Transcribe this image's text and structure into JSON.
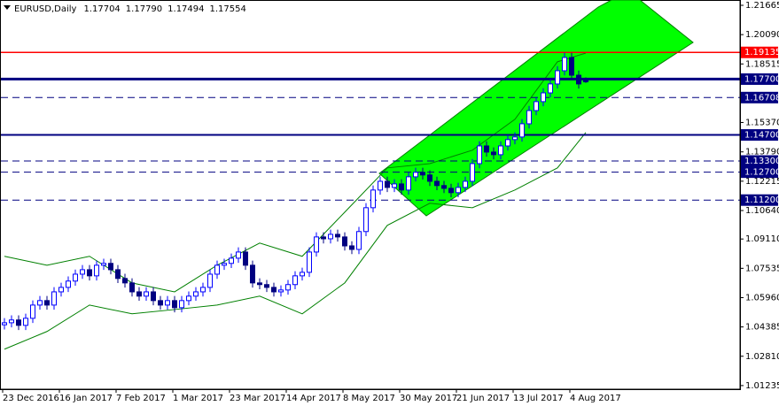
{
  "chart_data": {
    "type": "candlestick",
    "symbol": "EURUSD,Daily",
    "ohlc": [
      1.17704,
      {
        "value": 1.1779,
        "label": "1.17790"
      },
      1.17494,
      1.17554
    ],
    "categories": [
      "23 Dec 2016",
      null,
      null,
      null,
      null,
      null,
      null,
      null,
      "16 Jan 2017",
      null,
      null,
      null,
      null,
      null,
      null,
      null,
      "7 Feb 2017",
      null,
      null,
      null,
      null,
      null,
      null,
      null,
      "1 Mar 2017",
      null,
      null,
      null,
      null,
      null,
      null,
      null,
      "23 Mar 2017",
      null,
      null,
      null,
      null,
      null,
      null,
      null,
      "14 Apr 2017",
      null,
      null,
      null,
      null,
      null,
      null,
      null,
      "8 May 2017",
      null,
      null,
      null,
      null,
      null,
      null,
      null,
      "30 May 2017",
      null,
      null,
      null,
      null,
      null,
      null,
      null,
      "21 Jun 2017",
      null,
      null,
      null,
      null,
      null,
      null,
      null,
      "13 Jul 2017",
      null,
      null,
      null,
      null,
      null,
      null,
      null,
      "4 Aug 2017",
      null,
      null
    ],
    "open": [
      1.045,
      1.0461,
      1.0476,
      1.0447,
      1.0485,
      1.0556,
      1.058,
      1.0556,
      1.0627,
      1.0651,
      1.0685,
      1.0722,
      1.0746,
      1.0713,
      1.077,
      1.078,
      1.0746,
      1.0699,
      1.0675,
      1.0627,
      1.0604,
      1.0627,
      1.058,
      1.0556,
      1.058,
      1.0542,
      1.058,
      1.0604,
      1.0627,
      1.0651,
      1.0722,
      1.077,
      1.078,
      1.0808,
      1.0841,
      1.077,
      1.0675,
      1.0666,
      1.0651,
      1.0627,
      1.0637,
      1.0666,
      1.0713,
      1.0732,
      1.0841,
      1.0922,
      1.0912,
      1.0936,
      1.0922,
      1.0874,
      1.0855,
      1.0951,
      1.1079,
      1.1174,
      1.1221,
      1.1188,
      1.1207,
      1.1174,
      1.1245,
      1.1269,
      1.1255,
      1.1221,
      1.1198,
      1.1183,
      1.116,
      1.1188,
      1.1221,
      1.1316,
      1.1411,
      1.1378,
      1.1364,
      1.1411,
      1.1445,
      1.1459,
      1.153,
      1.1601,
      1.1649,
      1.1696,
      1.1744,
      1.1815,
      1.1886,
      1.1791,
      1.17704
    ],
    "high": [
      1.0486,
      1.0501,
      1.0501,
      1.051,
      1.0581,
      1.0605,
      1.0605,
      1.0652,
      1.0676,
      1.071,
      1.0747,
      1.0771,
      1.0771,
      1.0795,
      1.0805,
      1.0805,
      1.0771,
      1.0724,
      1.07,
      1.0652,
      1.0652,
      1.0652,
      1.0605,
      1.0605,
      1.0605,
      1.0605,
      1.0629,
      1.0652,
      1.0676,
      1.0747,
      1.0795,
      1.0805,
      1.0833,
      1.0866,
      1.0866,
      1.0795,
      1.07,
      1.0691,
      1.0676,
      1.0662,
      1.0691,
      1.0738,
      1.0757,
      1.0866,
      1.0947,
      1.0947,
      1.0961,
      1.0961,
      1.0947,
      1.0899,
      1.0976,
      1.1104,
      1.1199,
      1.1246,
      1.1246,
      1.1232,
      1.1232,
      1.127,
      1.1294,
      1.1294,
      1.128,
      1.1246,
      1.1223,
      1.1208,
      1.1213,
      1.1246,
      1.1341,
      1.1436,
      1.1436,
      1.1403,
      1.1436,
      1.147,
      1.1484,
      1.1555,
      1.1626,
      1.1674,
      1.1721,
      1.1769,
      1.184,
      1.1911,
      1.1911,
      1.1816,
      1.1779
    ],
    "low": [
      1.0425,
      1.0436,
      1.0422,
      1.0422,
      1.046,
      1.0531,
      1.0531,
      1.0531,
      1.0602,
      1.0626,
      1.066,
      1.0697,
      1.0688,
      1.0688,
      1.0745,
      1.0721,
      1.0674,
      1.065,
      1.0602,
      1.0579,
      1.0579,
      1.0555,
      1.0531,
      1.0531,
      1.0517,
      1.0517,
      1.0555,
      1.0579,
      1.0602,
      1.0626,
      1.0697,
      1.0745,
      1.0755,
      1.0783,
      1.0745,
      1.065,
      1.0641,
      1.0626,
      1.0602,
      1.0602,
      1.0612,
      1.0641,
      1.0688,
      1.0707,
      1.0816,
      1.0887,
      1.0887,
      1.0897,
      1.0849,
      1.083,
      1.083,
      1.0926,
      1.1054,
      1.1149,
      1.1163,
      1.1163,
      1.1149,
      1.1149,
      1.122,
      1.123,
      1.1196,
      1.1173,
      1.1158,
      1.1135,
      1.1135,
      1.1163,
      1.1196,
      1.1291,
      1.1353,
      1.1339,
      1.1339,
      1.1386,
      1.142,
      1.1434,
      1.1505,
      1.1576,
      1.1624,
      1.1671,
      1.1719,
      1.179,
      1.1766,
      1.1719,
      1.17494
    ],
    "close": [
      1.0461,
      1.0476,
      1.0447,
      1.0485,
      1.0556,
      1.058,
      1.0556,
      1.0627,
      1.0651,
      1.0685,
      1.0722,
      1.0746,
      1.0713,
      1.077,
      1.078,
      1.0746,
      1.0699,
      1.0675,
      1.0627,
      1.0604,
      1.0627,
      1.058,
      1.0556,
      1.058,
      1.0542,
      1.058,
      1.0604,
      1.0627,
      1.0651,
      1.0722,
      1.077,
      1.078,
      1.0808,
      1.0841,
      1.077,
      1.0675,
      1.0666,
      1.0651,
      1.0627,
      1.0637,
      1.0666,
      1.0713,
      1.0732,
      1.0841,
      1.0922,
      1.0912,
      1.0936,
      1.0922,
      1.0874,
      1.0855,
      1.0951,
      1.1079,
      1.1174,
      1.1221,
      1.1188,
      1.1207,
      1.1174,
      1.1245,
      1.1269,
      1.1255,
      1.1221,
      1.1198,
      1.1183,
      1.116,
      1.1188,
      1.1221,
      1.1316,
      1.1411,
      1.1378,
      1.1364,
      1.1411,
      1.1445,
      1.1459,
      1.153,
      1.1601,
      1.1649,
      1.1696,
      1.1744,
      1.1815,
      1.1886,
      1.1791,
      1.1744,
      1.17554
    ],
    "up_color": "#0000ff",
    "down_color": "#000080",
    "bands": {
      "color": "#008000",
      "index": [
        0,
        6,
        12,
        18,
        24,
        30,
        36,
        42,
        48,
        54,
        60,
        66,
        72,
        78,
        82
      ],
      "upper": [
        1.0818,
        1.077,
        1.0818,
        1.0675,
        1.0627,
        1.077,
        1.0889,
        1.0818,
        1.1055,
        1.1293,
        1.1316,
        1.1388,
        1.1554,
        1.1863,
        1.191
      ],
      "lower": [
        1.0319,
        1.0414,
        1.0556,
        1.0509,
        1.0532,
        1.0556,
        1.0604,
        1.0509,
        1.0675,
        1.0984,
        1.1103,
        1.1079,
        1.1174,
        1.1293,
        1.1483
      ]
    },
    "levels": [
      {
        "price": 1.19135,
        "color": "#ff0000",
        "dash": false,
        "width": 1.5
      },
      {
        "price": {
          "value": 1.177,
          "label": "1.17700"
        },
        "color": "#000080",
        "dash": false,
        "width": 3
      },
      {
        "price": 1.16708,
        "color": "#000080",
        "dash": true,
        "width": 1
      },
      {
        "price": {
          "value": 1.147,
          "label": "1.14700"
        },
        "color": "#000080",
        "dash": false,
        "width": 2
      },
      {
        "price": {
          "value": 1.133,
          "label": "1.13300"
        },
        "color": "#000080",
        "dash": true,
        "width": 1
      },
      {
        "price": {
          "value": 1.127,
          "label": "1.12700"
        },
        "color": "#000080",
        "dash": true,
        "width": 1
      },
      {
        "price": {
          "value": 1.112,
          "label": "1.11200"
        },
        "color": "#000080",
        "dash": true,
        "width": 1
      }
    ],
    "ylim": [
      1.0104,
      1.2195
    ],
    "yticks": [
      1.21665,
      {
        "value": 1.2009,
        "label": "1.20090"
      },
      1.18515,
      {
        "value": 1.1537,
        "label": "1.15370"
      },
      {
        "value": 1.1379,
        "label": "1.13790"
      },
      1.12215,
      {
        "value": 1.1064,
        "label": "1.10640"
      },
      {
        "value": 1.0911,
        "label": "1.09110"
      },
      1.07535,
      {
        "value": 1.0596,
        "label": "1.05960"
      },
      1.04385,
      {
        "value": 1.0281,
        "label": "1.02810"
      },
      1.01235
    ]
  }
}
